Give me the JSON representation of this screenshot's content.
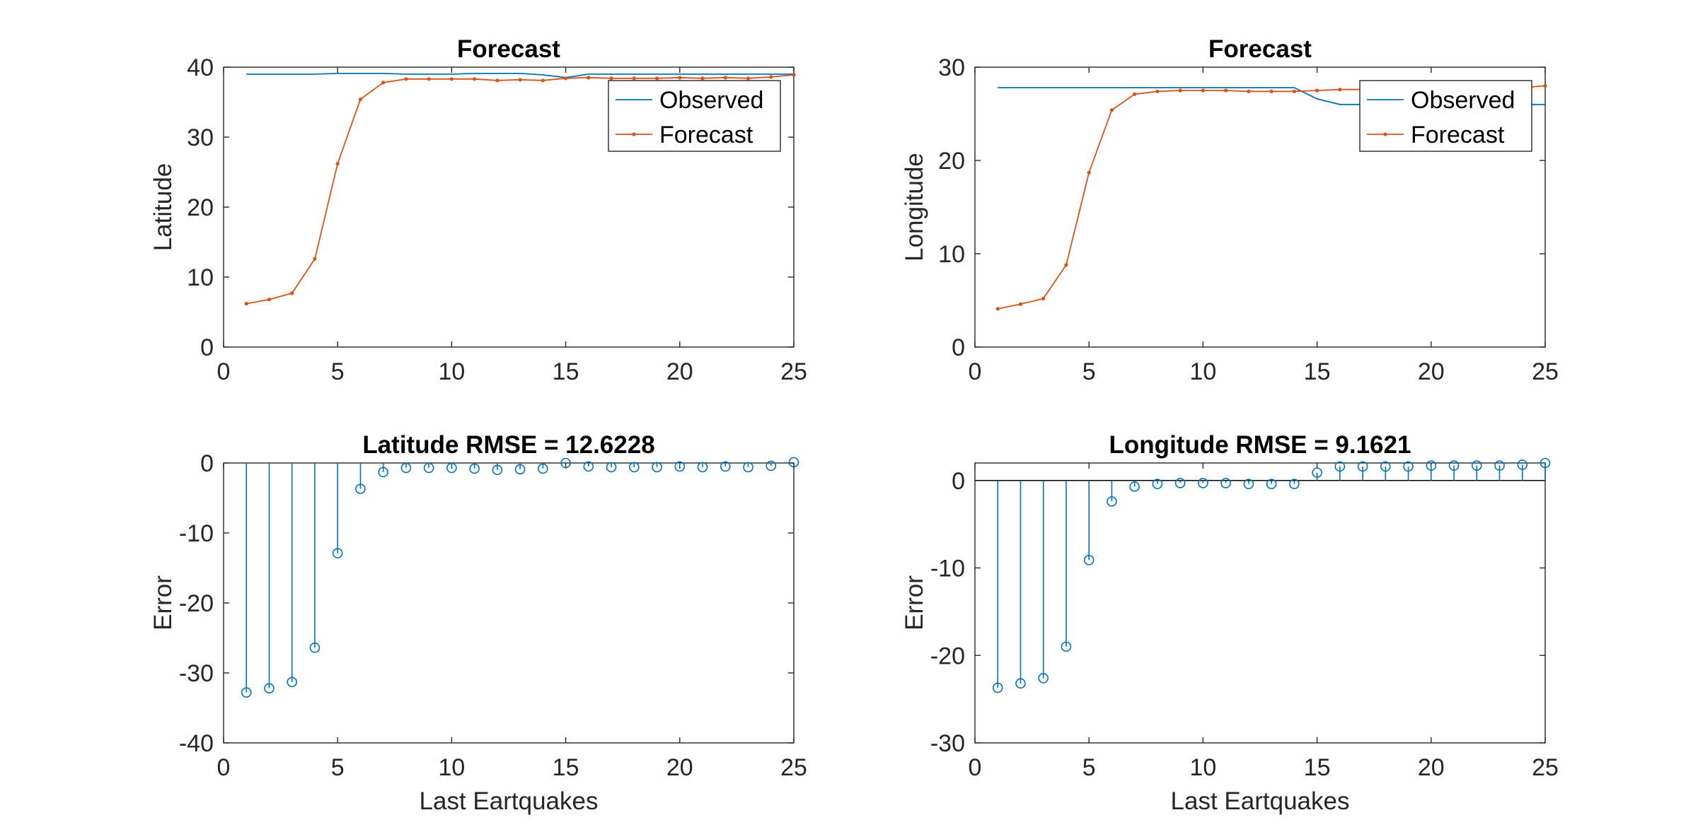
{
  "colors": {
    "observed": "#0072BD",
    "forecast": "#D95319",
    "axes": "#262626"
  },
  "chart_data": [
    {
      "id": "lat-forecast",
      "type": "line",
      "title": "Forecast",
      "xlabel": "",
      "ylabel": "Latitude",
      "xlim": [
        0,
        25
      ],
      "ylim": [
        0,
        40
      ],
      "xticks": [
        0,
        5,
        10,
        15,
        20,
        25
      ],
      "yticks": [
        0,
        10,
        20,
        30,
        40
      ],
      "grid": false,
      "legend": "top-right",
      "x": [
        1,
        2,
        3,
        4,
        5,
        6,
        7,
        8,
        9,
        10,
        11,
        12,
        13,
        14,
        15,
        16,
        17,
        18,
        19,
        20,
        21,
        22,
        23,
        24,
        25
      ],
      "series": [
        {
          "name": "Observed",
          "style": "line",
          "color": "#0072BD",
          "values": [
            39.0,
            39.0,
            39.0,
            39.0,
            39.1,
            39.1,
            39.1,
            39.0,
            39.0,
            39.0,
            39.1,
            39.1,
            39.1,
            38.9,
            38.5,
            39.0,
            39.0,
            39.0,
            39.0,
            39.0,
            39.0,
            39.0,
            39.0,
            39.0,
            39.0
          ]
        },
        {
          "name": "Forecast",
          "style": "line-dot",
          "color": "#D95319",
          "values": [
            6.2,
            6.8,
            7.7,
            12.6,
            26.2,
            35.4,
            37.8,
            38.3,
            38.3,
            38.3,
            38.3,
            38.1,
            38.2,
            38.1,
            38.4,
            38.5,
            38.4,
            38.4,
            38.4,
            38.5,
            38.4,
            38.5,
            38.4,
            38.6,
            38.9
          ]
        }
      ]
    },
    {
      "id": "lon-forecast",
      "type": "line",
      "title": "Forecast",
      "xlabel": "",
      "ylabel": "Longitude",
      "xlim": [
        0,
        25
      ],
      "ylim": [
        0,
        30
      ],
      "xticks": [
        0,
        5,
        10,
        15,
        20,
        25
      ],
      "yticks": [
        0,
        10,
        20,
        30
      ],
      "grid": false,
      "legend": "top-right",
      "x": [
        1,
        2,
        3,
        4,
        5,
        6,
        7,
        8,
        9,
        10,
        11,
        12,
        13,
        14,
        15,
        16,
        17,
        18,
        19,
        20,
        21,
        22,
        23,
        24,
        25
      ],
      "series": [
        {
          "name": "Observed",
          "style": "line",
          "color": "#0072BD",
          "values": [
            27.8,
            27.8,
            27.8,
            27.8,
            27.8,
            27.8,
            27.8,
            27.8,
            27.8,
            27.8,
            27.8,
            27.8,
            27.8,
            27.8,
            26.6,
            26.0,
            26.0,
            26.0,
            26.0,
            26.0,
            26.0,
            26.0,
            26.0,
            26.0,
            26.0
          ]
        },
        {
          "name": "Forecast",
          "style": "line-dot",
          "color": "#D95319",
          "values": [
            4.1,
            4.6,
            5.2,
            8.8,
            18.7,
            25.4,
            27.1,
            27.4,
            27.5,
            27.5,
            27.5,
            27.4,
            27.4,
            27.4,
            27.5,
            27.6,
            27.6,
            27.6,
            27.6,
            27.7,
            27.7,
            27.7,
            27.7,
            27.8,
            28.0
          ]
        }
      ]
    },
    {
      "id": "lat-error",
      "type": "stem",
      "title": "Latitude RMSE = 12.6228",
      "xlabel": "Last Eartquakes",
      "ylabel": "Error",
      "xlim": [
        0,
        25
      ],
      "ylim": [
        -40,
        0
      ],
      "xticks": [
        0,
        5,
        10,
        15,
        20,
        25
      ],
      "yticks": [
        -40,
        -30,
        -20,
        -10,
        0
      ],
      "grid": false,
      "x": [
        1,
        2,
        3,
        4,
        5,
        6,
        7,
        8,
        9,
        10,
        11,
        12,
        13,
        14,
        15,
        16,
        17,
        18,
        19,
        20,
        21,
        22,
        23,
        24,
        25
      ],
      "series": [
        {
          "name": "",
          "style": "stem",
          "color": "#0072BD",
          "values": [
            -32.8,
            -32.2,
            -31.3,
            -26.4,
            -12.9,
            -3.7,
            -1.3,
            -0.7,
            -0.7,
            -0.7,
            -0.8,
            -1.0,
            -0.9,
            -0.8,
            -0.0,
            -0.5,
            -0.6,
            -0.6,
            -0.6,
            -0.5,
            -0.6,
            -0.5,
            -0.6,
            -0.4,
            0.1
          ]
        }
      ]
    },
    {
      "id": "lon-error",
      "type": "stem",
      "title": "Longitude RMSE = 9.1621",
      "xlabel": "Last Eartquakes",
      "ylabel": "Error",
      "xlim": [
        0,
        25
      ],
      "ylim": [
        -30,
        2
      ],
      "xticks": [
        0,
        5,
        10,
        15,
        20,
        25
      ],
      "yticks": [
        -30,
        -20,
        -10,
        0
      ],
      "grid": false,
      "zero_line": true,
      "x": [
        1,
        2,
        3,
        4,
        5,
        6,
        7,
        8,
        9,
        10,
        11,
        12,
        13,
        14,
        15,
        16,
        17,
        18,
        19,
        20,
        21,
        22,
        23,
        24,
        25
      ],
      "series": [
        {
          "name": "",
          "style": "stem",
          "color": "#0072BD",
          "values": [
            -23.7,
            -23.2,
            -22.6,
            -19.0,
            -9.1,
            -2.4,
            -0.7,
            -0.4,
            -0.3,
            -0.3,
            -0.3,
            -0.4,
            -0.4,
            -0.4,
            0.9,
            1.6,
            1.6,
            1.6,
            1.6,
            1.7,
            1.7,
            1.7,
            1.7,
            1.8,
            2.0
          ]
        }
      ]
    }
  ]
}
